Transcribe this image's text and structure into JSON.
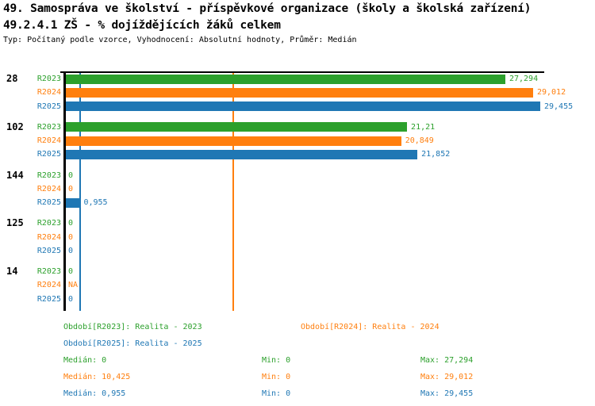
{
  "title": {
    "line1": "49. Samospráva ve školství - příspěvkové organizace (školy a školská zařízení)",
    "line2": "49.2.4.1 ZŠ - % dojíždějících žáků celkem",
    "line3": "Typ: Počítaný podle vzorce, Vyhodnocení: Absolutní hodnoty, Průměr: Medián"
  },
  "colors": {
    "R2023": "#2ca02c",
    "R2024": "#ff7f0e",
    "R2025": "#1f77b4",
    "axis": "#000000"
  },
  "chart_data": {
    "type": "bar",
    "orientation": "horizontal",
    "series_names": [
      "R2023",
      "R2024",
      "R2025"
    ],
    "categories": [
      "28",
      "102",
      "144",
      "125",
      "14"
    ],
    "xlim": [
      0,
      29.7
    ],
    "grid": false,
    "groups": [
      {
        "category": "28",
        "bars": [
          {
            "series": "R2023",
            "value": 27.294,
            "label": "27,294"
          },
          {
            "series": "R2024",
            "value": 29.012,
            "label": "29,012"
          },
          {
            "series": "R2025",
            "value": 29.455,
            "label": "29,455"
          }
        ]
      },
      {
        "category": "102",
        "bars": [
          {
            "series": "R2023",
            "value": 21.21,
            "label": "21,21"
          },
          {
            "series": "R2024",
            "value": 20.849,
            "label": "20,849"
          },
          {
            "series": "R2025",
            "value": 21.852,
            "label": "21,852"
          }
        ]
      },
      {
        "category": "144",
        "bars": [
          {
            "series": "R2023",
            "value": 0,
            "label": "0"
          },
          {
            "series": "R2024",
            "value": 0,
            "label": "0"
          },
          {
            "series": "R2025",
            "value": 0.955,
            "label": "0,955"
          }
        ]
      },
      {
        "category": "125",
        "bars": [
          {
            "series": "R2023",
            "value": 0,
            "label": "0"
          },
          {
            "series": "R2024",
            "value": 0,
            "label": "0"
          },
          {
            "series": "R2025",
            "value": 0,
            "label": "0"
          }
        ]
      },
      {
        "category": "14",
        "bars": [
          {
            "series": "R2023",
            "value": 0,
            "label": "0"
          },
          {
            "series": "R2024",
            "value": null,
            "label": "NA"
          },
          {
            "series": "R2025",
            "value": 0,
            "label": "0"
          }
        ]
      }
    ],
    "reference_lines": [
      {
        "series": "R2023",
        "value": 0
      },
      {
        "series": "R2024",
        "value": 10.425
      },
      {
        "series": "R2025",
        "value": 0.955
      }
    ]
  },
  "legend": {
    "items": [
      {
        "series": "R2023",
        "label": "Období[R2023]: Realita - 2023"
      },
      {
        "series": "R2024",
        "label": "Období[R2024]: Realita - 2024"
      },
      {
        "series": "R2025",
        "label": "Období[R2025]: Realita - 2025"
      }
    ]
  },
  "stats": [
    {
      "series": "R2023",
      "median": "Medián: 0",
      "min": "Min: 0",
      "max": "Max: 27,294"
    },
    {
      "series": "R2024",
      "median": "Medián: 10,425",
      "min": "Min: 0",
      "max": "Max: 29,012"
    },
    {
      "series": "R2025",
      "median": "Medián: 0,955",
      "min": "Min: 0",
      "max": "Max: 29,455"
    }
  ]
}
